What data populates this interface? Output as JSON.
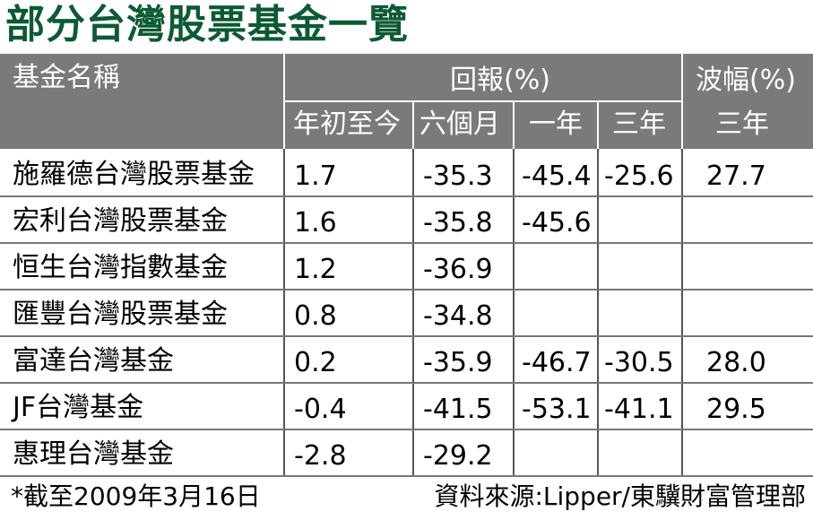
{
  "title": "部分台灣股票基金一覽",
  "header": {
    "fund_name": "基金名稱",
    "returns": "回報(%)",
    "volatility": "波幅(%)",
    "ytd": "年初至今",
    "six_months": "六個月",
    "one_year": "一年",
    "three_years": "三年",
    "vol_three_years": "三年"
  },
  "rows": [
    {
      "name": "施羅德台灣股票基金",
      "ytd": "1.7",
      "m6": "-35.3",
      "y1": "-45.4",
      "y3": "-25.6",
      "vol": "27.7"
    },
    {
      "name": "宏利台灣股票基金",
      "ytd": "1.6",
      "m6": "-35.8",
      "y1": "-45.6",
      "y3": "",
      "vol": ""
    },
    {
      "name": "恒生台灣指數基金",
      "ytd": "1.2",
      "m6": "-36.9",
      "y1": "",
      "y3": "",
      "vol": ""
    },
    {
      "name": "匯豐台灣股票基金",
      "ytd": "0.8",
      "m6": "-34.8",
      "y1": "",
      "y3": "",
      "vol": ""
    },
    {
      "name": "富達台灣基金",
      "ytd": "0.2",
      "m6": "-35.9",
      "y1": "-46.7",
      "y3": "-30.5",
      "vol": "28.0"
    },
    {
      "name": "JF台灣基金",
      "ytd": "-0.4",
      "m6": "-41.5",
      "y1": "-53.1",
      "y3": "-41.1",
      "vol": "29.5"
    },
    {
      "name": "惠理台灣基金",
      "ytd": "-2.8",
      "m6": "-29.2",
      "y1": "",
      "y3": "",
      "vol": ""
    }
  ],
  "footer": {
    "note": "*截至2009年3月16日",
    "source": "資料來源:Lipper/東驥財富管理部"
  },
  "colors": {
    "title": "#0c5a34",
    "header_bg": "#7a7a7a"
  }
}
